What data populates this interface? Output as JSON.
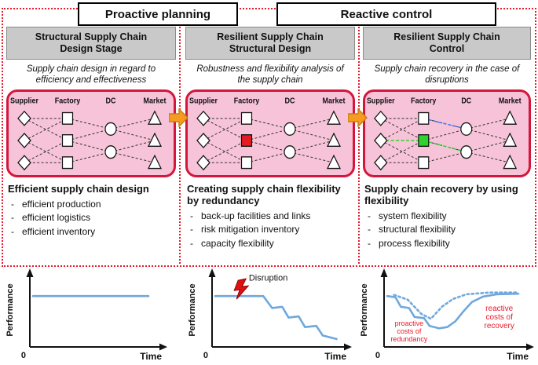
{
  "banners": {
    "proactive": "Proactive planning",
    "reactive": "Reactive control"
  },
  "colors": {
    "frame_red": "#e8192c",
    "network_pink": "#f7c3d8",
    "network_border_red": "#d4163c",
    "title_gray": "#c9c9c9",
    "arrow_orange": "#f49b20",
    "chart_line_blue": "#6fa8dc",
    "disrupted_node_red": "#e51c23",
    "recovered_node_green": "#2fd22f"
  },
  "columns": [
    {
      "title": "Structural Supply Chain Design Stage",
      "subtitle": "Supply chain design in regard to efficiency and effectiveness",
      "heading": "Efficient supply chain design",
      "bullets": [
        "efficient production",
        "efficient logistics",
        "efficient inventory"
      ],
      "network": {
        "tiers": [
          {
            "label": "Supplier",
            "shape": "diamond",
            "count": 3
          },
          {
            "label": "Factory",
            "shape": "square",
            "count": 3
          },
          {
            "label": "DC",
            "shape": "circle",
            "count": 2
          },
          {
            "label": "Market",
            "shape": "triangle",
            "count": 3
          }
        ]
      }
    },
    {
      "title": "Resilient Supply Chain Structural Design",
      "subtitle": "Robustness and flexibility analysis of the supply chain",
      "heading": "Creating supply chain flexibility by redundancy",
      "bullets": [
        "back-up facilities and links",
        "risk mitigation inventory",
        "capacity flexibility"
      ],
      "network": {
        "tiers": [
          {
            "label": "Supplier",
            "shape": "diamond",
            "count": 3
          },
          {
            "label": "Factory",
            "shape": "square",
            "count": 3,
            "highlight": {
              "index": 1,
              "color": "#e51c23"
            }
          },
          {
            "label": "DC",
            "shape": "circle",
            "count": 2
          },
          {
            "label": "Market",
            "shape": "triangle",
            "count": 3
          }
        ]
      }
    },
    {
      "title": "Resilient Supply Chain Control",
      "subtitle": "Supply chain recovery in the case of disruptions",
      "heading": "Supply chain recovery by using flexibility",
      "bullets": [
        "system flexibility",
        "structural flexibility",
        "process flexibility"
      ],
      "network": {
        "tiers": [
          {
            "label": "Supplier",
            "shape": "diamond",
            "count": 3
          },
          {
            "label": "Factory",
            "shape": "square",
            "count": 3,
            "highlight": {
              "index": 1,
              "color": "#2fd22f"
            }
          },
          {
            "label": "DC",
            "shape": "circle",
            "count": 2
          },
          {
            "label": "Market",
            "shape": "triangle",
            "count": 3
          }
        ],
        "extra_links": [
          {
            "from": [
              1,
              0
            ],
            "to": [
              2,
              0
            ],
            "color": "#3b7bff"
          },
          {
            "from": [
              0,
              1
            ],
            "to": [
              1,
              1
            ],
            "color": "#2fd22f"
          },
          {
            "from": [
              1,
              1
            ],
            "to": [
              2,
              1
            ],
            "color": "#2fd22f"
          }
        ]
      }
    }
  ],
  "chart_data": [
    {
      "type": "line",
      "ylabel": "Performance",
      "xlabel": "Time",
      "origin_label": "0",
      "line_color": "#6fa8dc",
      "series": [
        {
          "name": "stable performance",
          "style": "solid",
          "points": [
            [
              0,
              0.8
            ],
            [
              0.93,
              0.8
            ]
          ]
        }
      ]
    },
    {
      "type": "line",
      "ylabel": "Performance",
      "xlabel": "Time",
      "origin_label": "0",
      "line_color": "#6fa8dc",
      "annotations": [
        {
          "text": "Disruption",
          "x": 0.42,
          "y": 1.06,
          "color": "#111111",
          "size": 11
        }
      ],
      "bolt": {
        "x": 0.2,
        "y": 0.88,
        "color": "#e01010"
      },
      "series": [
        {
          "name": "performance after disruption",
          "style": "solid",
          "points": [
            [
              0,
              0.8
            ],
            [
              0.38,
              0.8
            ],
            [
              0.45,
              0.6
            ],
            [
              0.53,
              0.62
            ],
            [
              0.58,
              0.44
            ],
            [
              0.66,
              0.46
            ],
            [
              0.71,
              0.28
            ],
            [
              0.8,
              0.3
            ],
            [
              0.85,
              0.14
            ],
            [
              0.96,
              0.08
            ]
          ]
        }
      ]
    },
    {
      "type": "line",
      "ylabel": "Performance",
      "xlabel": "Time",
      "origin_label": "0",
      "line_color": "#6fa8dc",
      "annotations": [
        {
          "text": "proactive\ncosts of\nredundancy",
          "x": 0.16,
          "y": 0.3,
          "color": "#e8192c",
          "size": 9
        },
        {
          "text": "reactive\ncosts of\nrecovery",
          "x": 0.82,
          "y": 0.55,
          "color": "#e8192c",
          "size": 10
        }
      ],
      "series": [
        {
          "name": "reactive recovery",
          "style": "solid",
          "points": [
            [
              0,
              0.8
            ],
            [
              0.06,
              0.78
            ],
            [
              0.1,
              0.62
            ],
            [
              0.16,
              0.6
            ],
            [
              0.2,
              0.45
            ],
            [
              0.27,
              0.43
            ],
            [
              0.31,
              0.3
            ],
            [
              0.38,
              0.26
            ],
            [
              0.44,
              0.28
            ],
            [
              0.5,
              0.38
            ],
            [
              0.56,
              0.55
            ],
            [
              0.62,
              0.7
            ],
            [
              0.7,
              0.79
            ],
            [
              0.8,
              0.83
            ],
            [
              0.96,
              0.84
            ]
          ]
        },
        {
          "name": "proactive recovery",
          "style": "dotted",
          "points": [
            [
              0.05,
              0.82
            ],
            [
              0.15,
              0.74
            ],
            [
              0.25,
              0.5
            ],
            [
              0.32,
              0.42
            ],
            [
              0.4,
              0.62
            ],
            [
              0.48,
              0.75
            ],
            [
              0.58,
              0.83
            ],
            [
              0.75,
              0.86
            ],
            [
              0.96,
              0.86
            ]
          ]
        }
      ]
    }
  ]
}
